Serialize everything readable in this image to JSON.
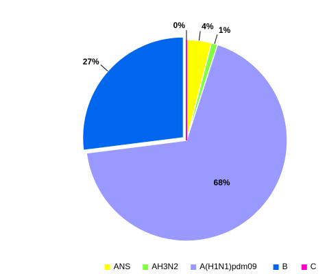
{
  "chart_data": {
    "type": "pie",
    "categories": [
      "ANS",
      "AH3N2",
      "A(H1N1)pdm09",
      "B",
      "C"
    ],
    "values": [
      4,
      1,
      68,
      27,
      0
    ],
    "value_labels": [
      "4%",
      "1%",
      "68%",
      "27%",
      "0%"
    ],
    "colors": [
      "#ffff00",
      "#80ff40",
      "#9999ff",
      "#0066ee",
      "#ff00cc"
    ],
    "legend": "bottom"
  }
}
